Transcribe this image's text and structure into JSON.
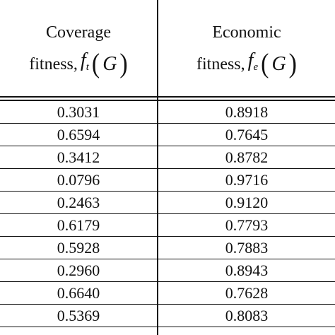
{
  "table": {
    "header": {
      "col1": {
        "line1": "Coverage",
        "line2_text": "fitness,",
        "symbol": "f",
        "subscript": "t",
        "open_paren": "(",
        "arg": "G",
        "close_paren": ")"
      },
      "col2": {
        "line1": "Economic",
        "line2_text": "fitness,",
        "symbol": "f",
        "subscript": "e",
        "open_paren": "(",
        "arg": "G",
        "close_paren": ")"
      }
    },
    "rows": [
      {
        "coverage": "0.3031",
        "economic": "0.8918"
      },
      {
        "coverage": "0.6594",
        "economic": "0.7645"
      },
      {
        "coverage": "0.3412",
        "economic": "0.8782"
      },
      {
        "coverage": "0.0796",
        "economic": "0.9716"
      },
      {
        "coverage": "0.2463",
        "economic": "0.9120"
      },
      {
        "coverage": "0.6179",
        "economic": "0.7793"
      },
      {
        "coverage": "0.5928",
        "economic": "0.7883"
      },
      {
        "coverage": "0.2960",
        "economic": "0.8943"
      },
      {
        "coverage": "0.6640",
        "economic": "0.7628"
      },
      {
        "coverage": "0.5369",
        "economic": "0.8083"
      }
    ]
  }
}
